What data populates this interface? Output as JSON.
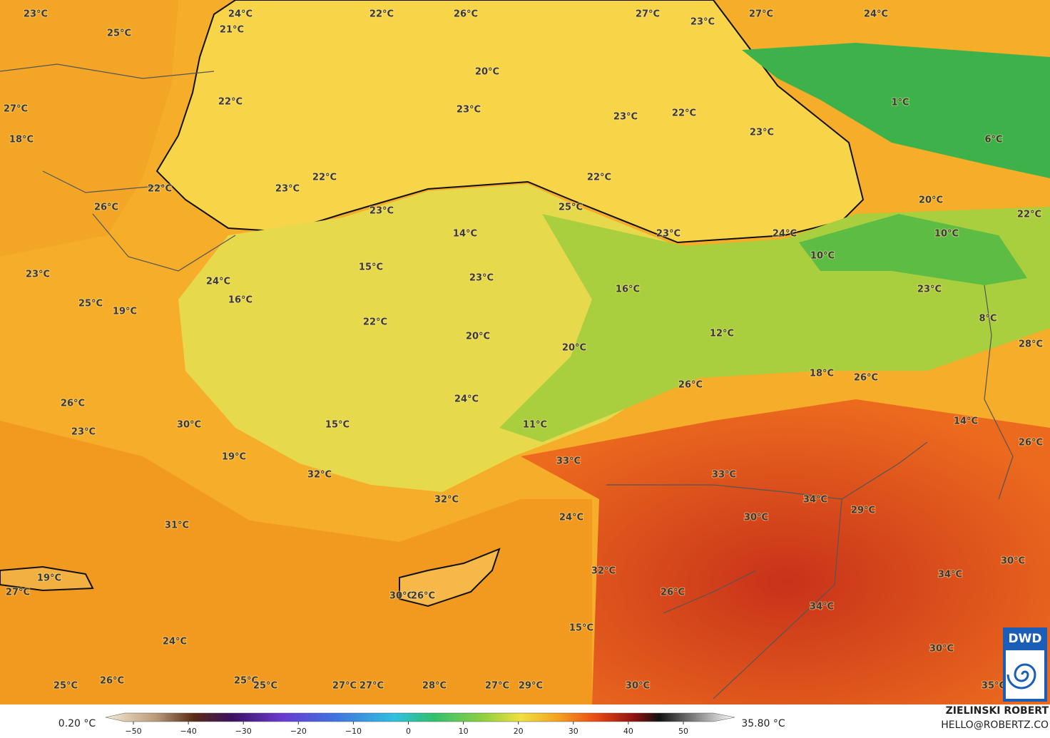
{
  "map": {
    "labels": [
      "23°C",
      "24°C",
      "21°C",
      "25°C",
      "22°C",
      "26°C",
      "27°C",
      "27°C",
      "24°C",
      "23°C",
      "20°C",
      "27°C",
      "22°C",
      "23°C",
      "23°C",
      "22°C",
      "23°C",
      "1°C",
      "18°C",
      "6°C",
      "22°C",
      "22°C",
      "23°C",
      "22°C",
      "26°C",
      "23°C",
      "25°C",
      "20°C",
      "22°C",
      "14°C",
      "23°C",
      "24°C",
      "10°C",
      "10°C",
      "15°C",
      "23°C",
      "24°C",
      "23°C",
      "16°C",
      "23°C",
      "16°C",
      "25°C",
      "19°C",
      "8°C",
      "22°C",
      "20°C",
      "12°C",
      "28°C",
      "20°C",
      "18°C",
      "26°C",
      "26°C",
      "24°C",
      "26°C",
      "15°C",
      "11°C",
      "14°C",
      "30°C",
      "23°C",
      "26°C",
      "19°C",
      "33°C",
      "32°C",
      "33°C",
      "34°C",
      "32°C",
      "29°C",
      "30°C",
      "24°C",
      "31°C",
      "30°C",
      "32°C",
      "34°C",
      "19°C",
      "27°C",
      "26°C",
      "30°C",
      "26°C",
      "34°C",
      "15°C",
      "24°C",
      "30°C",
      "26°C",
      "25°C",
      "25°C",
      "25°C",
      "27°C",
      "27°C",
      "28°C",
      "27°C",
      "29°C",
      "30°C",
      "35°C"
    ],
    "logo": "DWD"
  },
  "legend": {
    "min": "0.20 °C",
    "max": "35.80 °C",
    "ticks": [
      "−50",
      "−40",
      "−30",
      "−20",
      "−10",
      "0",
      "10",
      "20",
      "30",
      "40",
      "50"
    ]
  },
  "credit": {
    "author": "ZIELINSKI ROBERT",
    "contact": "HELLO@ROBERTZ.CO"
  }
}
